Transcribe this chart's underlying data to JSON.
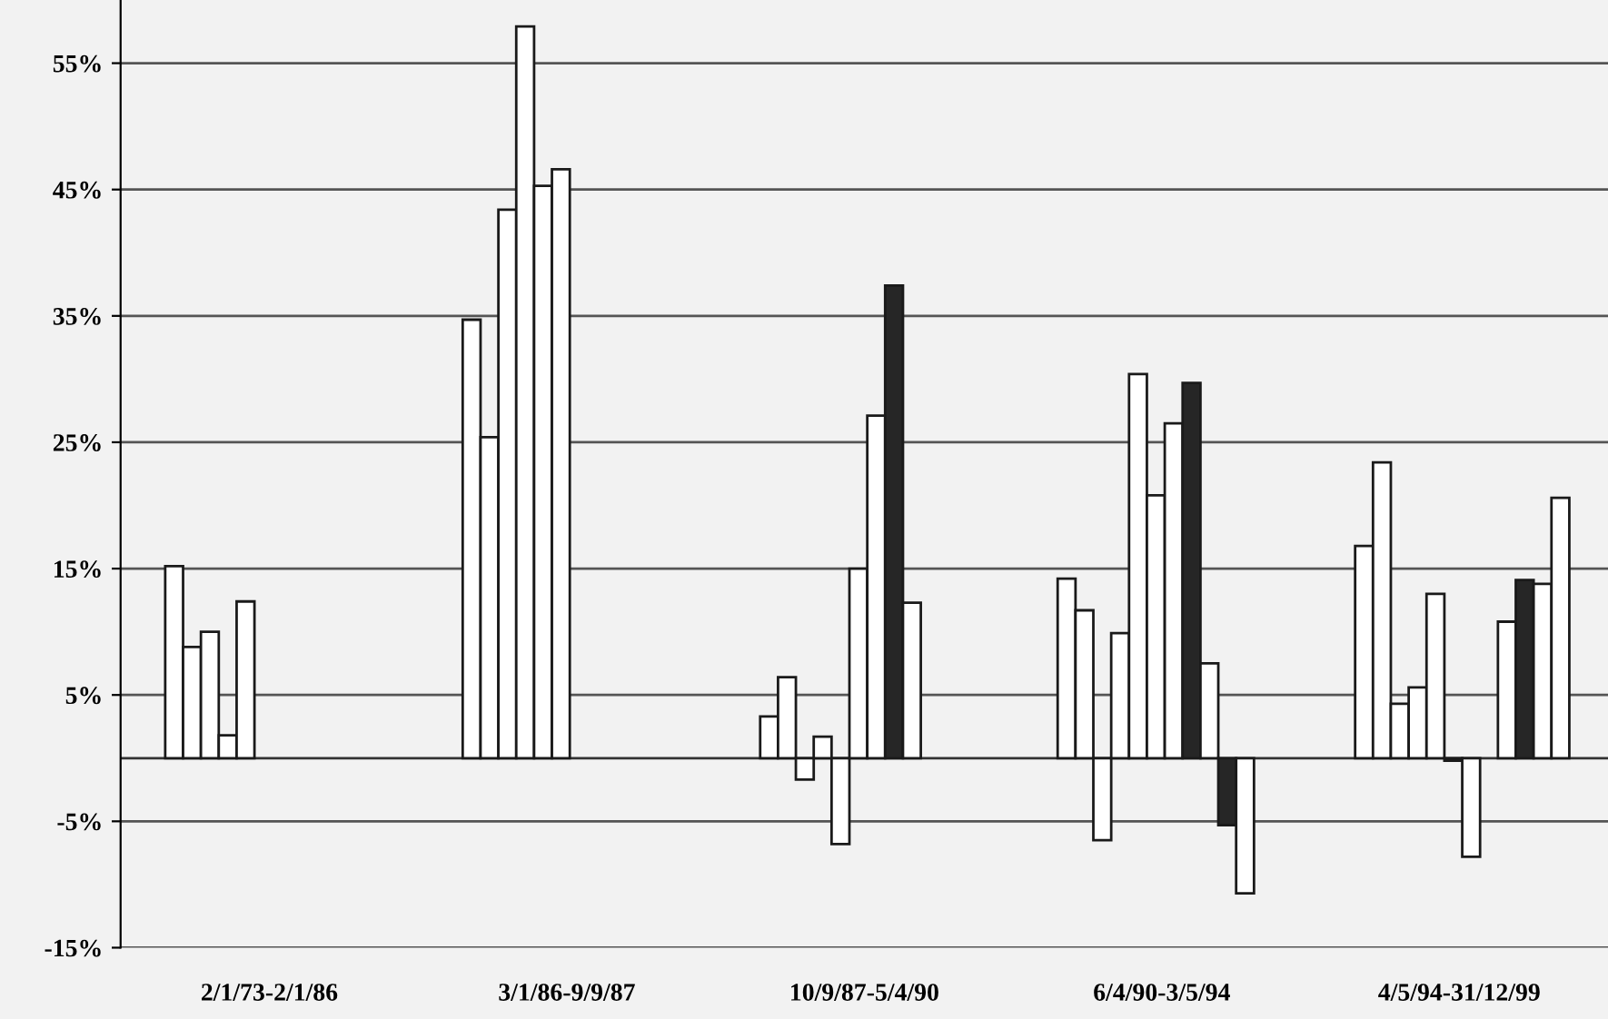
{
  "chart_data": {
    "type": "bar",
    "categories": [
      "2/1/73-2/1/86",
      "3/1/86-9/9/87",
      "10/9/87-5/4/90",
      "6/4/90-3/5/94",
      "4/5/94-31/12/99"
    ],
    "series": [
      {
        "color": "#ffffff",
        "values": [
          15.2,
          34.7,
          3.3,
          14.2,
          16.8
        ]
      },
      {
        "color": "#ffffff",
        "values": [
          8.8,
          25.4,
          6.4,
          11.7,
          23.4
        ]
      },
      {
        "color": "#ffffff",
        "values": [
          10.0,
          43.4,
          -1.7,
          -6.5,
          4.3
        ]
      },
      {
        "color": "#ffffff",
        "values": [
          1.8,
          57.9,
          1.7,
          9.9,
          5.6
        ]
      },
      {
        "color": "#ffffff",
        "values": [
          12.4,
          45.3,
          -6.8,
          30.4,
          13.0
        ]
      },
      {
        "color": "#ffffff",
        "values": [
          null,
          46.6,
          15.0,
          20.8,
          -0.2
        ]
      },
      {
        "color": "#ffffff",
        "values": [
          null,
          null,
          27.1,
          26.5,
          -7.8
        ]
      },
      {
        "color": "#262626",
        "values": [
          null,
          null,
          37.4,
          29.7,
          null
        ]
      },
      {
        "color": "#ffffff",
        "values": [
          null,
          null,
          12.3,
          7.5,
          10.8
        ]
      },
      {
        "color": "#262626",
        "values": [
          null,
          null,
          null,
          -5.3,
          14.1
        ]
      },
      {
        "color": "#ffffff",
        "values": [
          null,
          null,
          null,
          -10.7,
          13.8
        ]
      },
      {
        "color": "#ffffff",
        "values": [
          null,
          null,
          null,
          null,
          20.6
        ]
      }
    ],
    "ylim": [
      -15,
      60
    ],
    "yticks": [
      {
        "value": -15,
        "label": "-15%"
      },
      {
        "value": -5,
        "label": "-5%"
      },
      {
        "value": 5,
        "label": "5%"
      },
      {
        "value": 15,
        "label": "15%"
      },
      {
        "value": 25,
        "label": "25%"
      },
      {
        "value": 35,
        "label": "35%"
      },
      {
        "value": 45,
        "label": "45%"
      },
      {
        "value": 55,
        "label": "55%"
      }
    ],
    "grid": "y",
    "legend": false
  }
}
